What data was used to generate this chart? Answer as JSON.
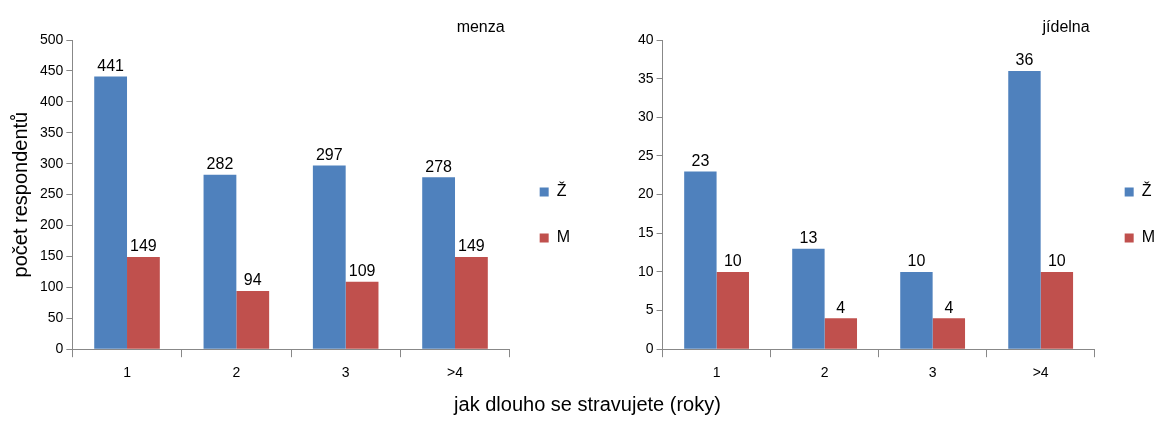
{
  "chart_data": [
    {
      "type": "bar",
      "title": "menza",
      "ylabel": "počet respondentů",
      "xlabel": "jak dlouho se  stravujete (roky)",
      "categories": [
        "1",
        "2",
        "3",
        ">4"
      ],
      "series": [
        {
          "name": "Ž",
          "color": "#4f81bd",
          "values": [
            441,
            282,
            297,
            278
          ]
        },
        {
          "name": "M",
          "color": "#c0504d",
          "values": [
            149,
            94,
            109,
            149
          ]
        }
      ],
      "ylim": [
        0,
        500
      ],
      "yticks": [
        0,
        50,
        100,
        150,
        200,
        250,
        300,
        350,
        400,
        450,
        500
      ],
      "data_labels": true,
      "legend": "right",
      "grid": false
    },
    {
      "type": "bar",
      "title": "jídelna",
      "categories": [
        "1",
        "2",
        "3",
        ">4"
      ],
      "series": [
        {
          "name": "Ž",
          "color": "#4f81bd",
          "values": [
            23,
            13,
            10,
            36
          ]
        },
        {
          "name": "M",
          "color": "#c0504d",
          "values": [
            10,
            4,
            4,
            10
          ]
        }
      ],
      "ylim": [
        0,
        40
      ],
      "yticks": [
        0,
        5,
        10,
        15,
        20,
        25,
        30,
        35,
        40
      ],
      "data_labels": true,
      "legend": "right",
      "grid": false
    }
  ]
}
